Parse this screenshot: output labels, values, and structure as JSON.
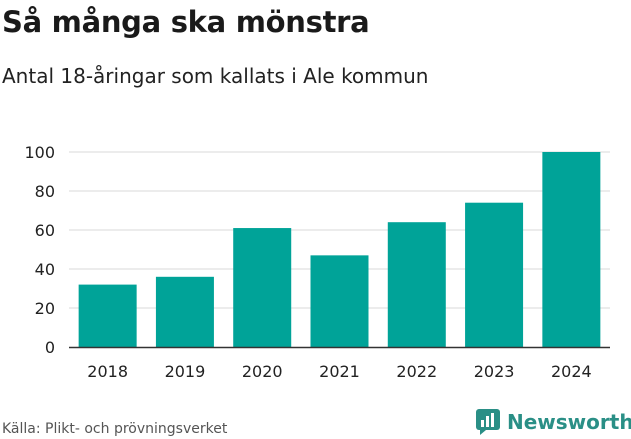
{
  "header": {
    "title": "Så många ska mönstra",
    "subtitle": "Antal 18-åringar som kallats i Ale kommun"
  },
  "footer": {
    "source": "Källa: Plikt- och prövningsverket",
    "brand": "Newsworthy"
  },
  "colors": {
    "bar": "#00a398",
    "grid": "#d9d9d9",
    "axis": "#333333",
    "brand": "#2a8f86"
  },
  "chart_data": {
    "type": "bar",
    "title": "Så många ska mönstra",
    "subtitle": "Antal 18-åringar som kallats i Ale kommun",
    "categories": [
      "2018",
      "2019",
      "2020",
      "2021",
      "2022",
      "2023",
      "2024"
    ],
    "values": [
      32,
      36,
      61,
      47,
      64,
      74,
      100
    ],
    "yticks": [
      0,
      20,
      40,
      60,
      80,
      100
    ],
    "ylim": [
      0,
      100
    ],
    "xlabel": "",
    "ylabel": "",
    "grid": true
  }
}
